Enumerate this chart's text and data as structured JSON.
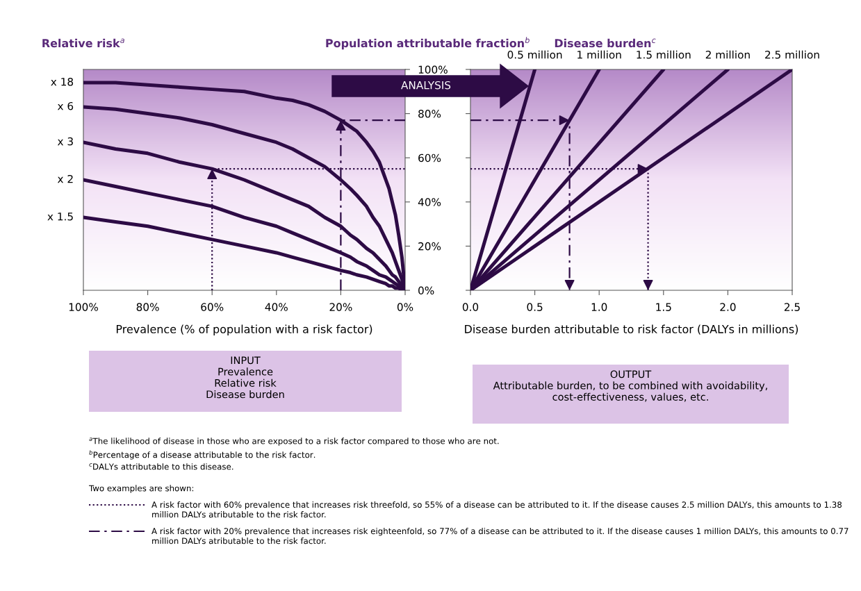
{
  "chart_data": [
    {
      "type": "line",
      "title": "Relative risk$^{a}$",
      "ylabel": "Population attributable fraction$^{b}$",
      "xlabel": "Prevalence (% of population with a risk factor)",
      "x": [
        100,
        90,
        80,
        70,
        60,
        50,
        40,
        35,
        30,
        25,
        20,
        17,
        15,
        12,
        10,
        8,
        6,
        5,
        4,
        3,
        2,
        1,
        0
      ],
      "xlim": [
        100,
        0
      ],
      "xticks": [
        {
          "value": 100,
          "label": "100%"
        },
        {
          "value": 80,
          "label": "80%"
        },
        {
          "value": 60,
          "label": "60%"
        },
        {
          "value": 40,
          "label": "40%"
        },
        {
          "value": 20,
          "label": "20%"
        },
        {
          "value": 0,
          "label": "0%"
        }
      ],
      "ylim": [
        0,
        100
      ],
      "yticks": [
        {
          "value": 0,
          "label": "0%"
        },
        {
          "value": 20,
          "label": "20%"
        },
        {
          "value": 40,
          "label": "40%"
        },
        {
          "value": 60,
          "label": "60%"
        },
        {
          "value": 80,
          "label": "80%"
        },
        {
          "value": 100,
          "label": "100%"
        }
      ],
      "series": [
        {
          "name": "x 18",
          "color": "#2d0b45",
          "values": [
            94,
            94,
            93,
            92,
            91,
            90,
            87,
            86,
            84,
            81,
            77,
            74,
            72,
            67,
            63,
            58,
            50,
            46,
            40,
            34,
            25,
            15,
            0
          ]
        },
        {
          "name": "x 6",
          "color": "#2d0b45",
          "values": [
            83,
            82,
            80,
            78,
            75,
            71,
            67,
            64,
            60,
            56,
            50,
            46,
            43,
            38,
            33,
            29,
            23,
            20,
            17,
            13,
            9,
            5,
            0
          ]
        },
        {
          "name": "x 3",
          "color": "#2d0b45",
          "values": [
            67,
            64,
            62,
            58,
            55,
            50,
            44,
            41,
            38,
            33,
            29,
            25,
            23,
            19,
            17,
            14,
            11,
            9,
            7,
            6,
            4,
            2,
            0
          ]
        },
        {
          "name": "x 2",
          "color": "#2d0b45",
          "values": [
            50,
            47,
            44,
            41,
            38,
            33,
            29,
            26,
            23,
            20,
            17,
            15,
            13,
            11,
            9,
            7,
            6,
            5,
            4,
            3,
            2,
            1,
            0
          ]
        },
        {
          "name": "x 1.5",
          "color": "#2d0b45",
          "values": [
            33,
            31,
            29,
            26,
            23,
            20,
            17,
            15,
            13,
            11,
            9,
            8,
            7,
            6,
            5,
            4,
            3,
            2,
            2,
            1,
            1,
            0,
            0
          ]
        },
        {
          "color": "#2d0b45",
          "line_style": "dotted",
          "x": [
            60,
            60,
            0
          ],
          "values": [
            0,
            55,
            55
          ]
        },
        {
          "color": "#2d0b45",
          "line_style": "dashed",
          "x": [
            20,
            20,
            0
          ],
          "values": [
            0,
            77,
            77
          ]
        }
      ],
      "annotations": [
        "ANALYSIS",
        "INPUT\nPrevalence\nRelative risk\nDisease burden",
        "$^{a}$The likelihood of disease in those who are exposed to a risk factor compared to those who are not.",
        "$^{b}$Percentage of a disease attributable to the risk factor.",
        "$^{c}$DALYs attributable to this disease.",
        "Two examples are shown:",
        "A risk factor with 60% prevalence that increases risk threefold, so 55% of a disease can be attributed to it. If the disease causes 2.5 million DALYs, this amounts to 1.38 million DALYs atributable to the risk factor.",
        "A risk factor with 20% prevalence that increases risk eighteenfold, so 77% of a disease can be attributed to it. If the disease causes 1 million DALYs, this amounts to 0.77 million DALYs atributable to the risk factor."
      ]
    },
    {
      "type": "line",
      "title": "Disease burden$^{c}$",
      "xlabel": "Disease burden attributable to risk factor (DALYs in millions)",
      "xlim": [
        0,
        2.5
      ],
      "xticks": [
        {
          "value": 0,
          "label": "0.0"
        },
        {
          "value": 0.5,
          "label": "0.5"
        },
        {
          "value": 1,
          "label": "1.0"
        },
        {
          "value": 1.5,
          "label": "1.5"
        },
        {
          "value": 2,
          "label": "2.0"
        },
        {
          "value": 2.5,
          "label": "2.5"
        }
      ],
      "ylim": [
        0,
        100
      ],
      "yticks": [
        {
          "value": 0,
          "label": null
        },
        {
          "value": 20,
          "label": null
        },
        {
          "value": 40,
          "label": null
        },
        {
          "value": 60,
          "label": null
        },
        {
          "value": 80,
          "label": null
        },
        {
          "value": 100,
          "label": null
        }
      ],
      "tick_labels": "x",
      "series": [
        {
          "name": "0.5 million",
          "color": "#2d0b45",
          "x": [
            0,
            0.5
          ],
          "values": [
            0,
            100
          ]
        },
        {
          "name": "1 million",
          "color": "#2d0b45",
          "x": [
            0,
            1
          ],
          "values": [
            0,
            100
          ]
        },
        {
          "name": "1.5 million",
          "color": "#2d0b45",
          "x": [
            0,
            1.5
          ],
          "values": [
            0,
            100
          ]
        },
        {
          "name": "2 million",
          "color": "#2d0b45",
          "x": [
            0,
            2
          ],
          "values": [
            0,
            100
          ]
        },
        {
          "name": "2.5 million",
          "color": "#2d0b45",
          "x": [
            0,
            2.5
          ],
          "values": [
            0,
            100
          ]
        },
        {
          "color": "#2d0b45",
          "line_style": "dotted",
          "x": [
            0,
            1.38,
            1.38
          ],
          "values": [
            55,
            55,
            0
          ]
        },
        {
          "color": "#2d0b45",
          "line_style": "dashed",
          "x": [
            0,
            0.77,
            0.77
          ],
          "values": [
            77,
            77,
            0
          ]
        }
      ],
      "annotations": [
        "OUTPUT\nAttributable burden, to be combined with avoidability,\ncost-effectiveness, values, etc."
      ]
    }
  ]
}
